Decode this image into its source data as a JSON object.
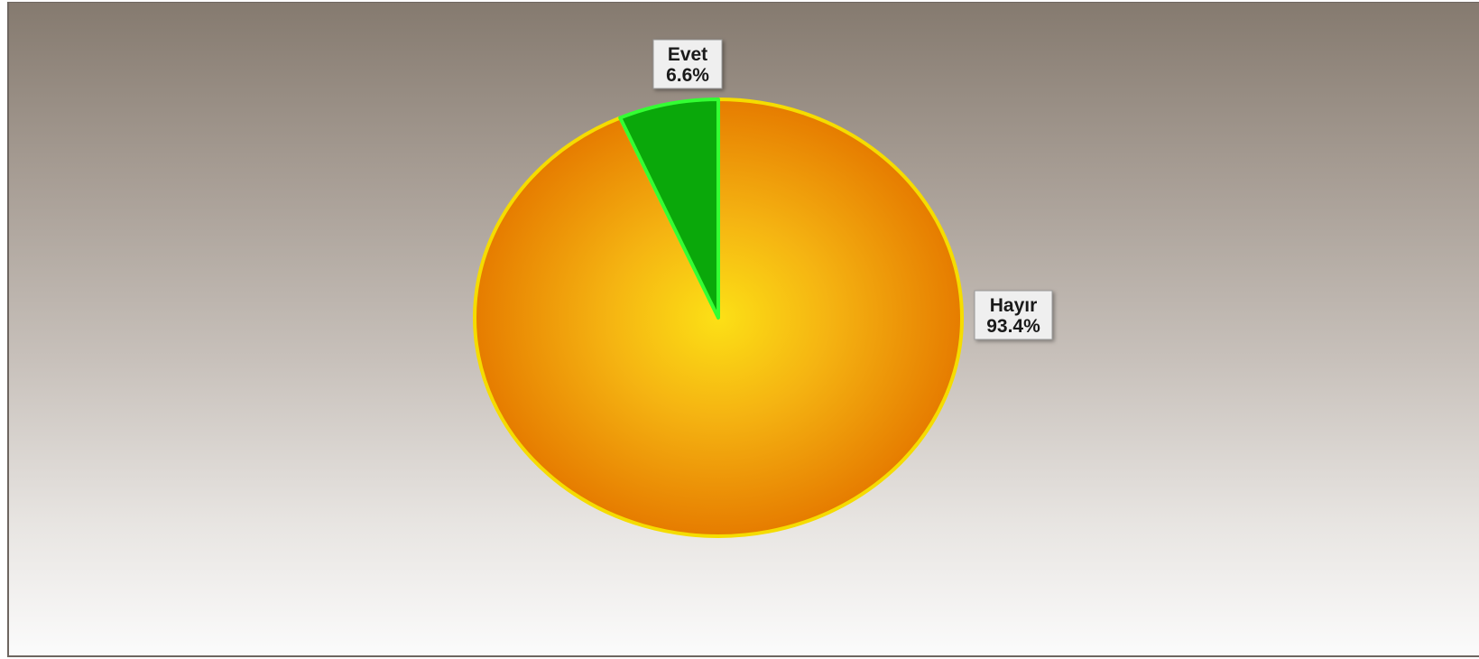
{
  "chart_data": {
    "type": "pie",
    "slices": [
      {
        "label": "Evet",
        "value": 6.6,
        "value_label": "6.6%",
        "color": "#0aa80a",
        "edge_color": "#33ff33"
      },
      {
        "label": "Hayır",
        "value": 93.4,
        "value_label": "93.4%",
        "color": "#f0a010",
        "edge_color": "#f5dc00"
      }
    ],
    "start_angle_deg": 0,
    "direction": "counterclockwise"
  }
}
